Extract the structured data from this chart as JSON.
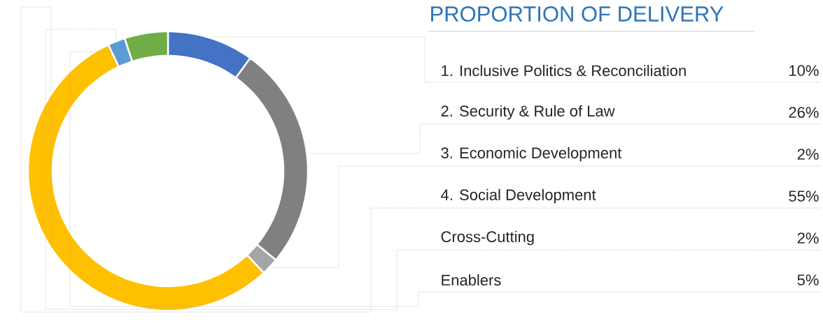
{
  "chart_data": {
    "type": "donut",
    "title": "PROPORTION OF DELIVERY",
    "categories": [
      "1. Inclusive Politics & Reconciliation",
      "2. Security & Rule of Law",
      "3. Economic Development",
      "4. Social Development",
      "Cross-Cutting",
      "Enablers"
    ],
    "values": [
      10,
      26,
      2,
      55,
      2,
      5
    ],
    "colors": [
      "#4472c4",
      "#808080",
      "#a5a5a5",
      "#ffc000",
      "#5b9bd5",
      "#70ad47"
    ],
    "value_labels": [
      "10%",
      "26%",
      "2%",
      "55%",
      "2%",
      "5%"
    ]
  }
}
